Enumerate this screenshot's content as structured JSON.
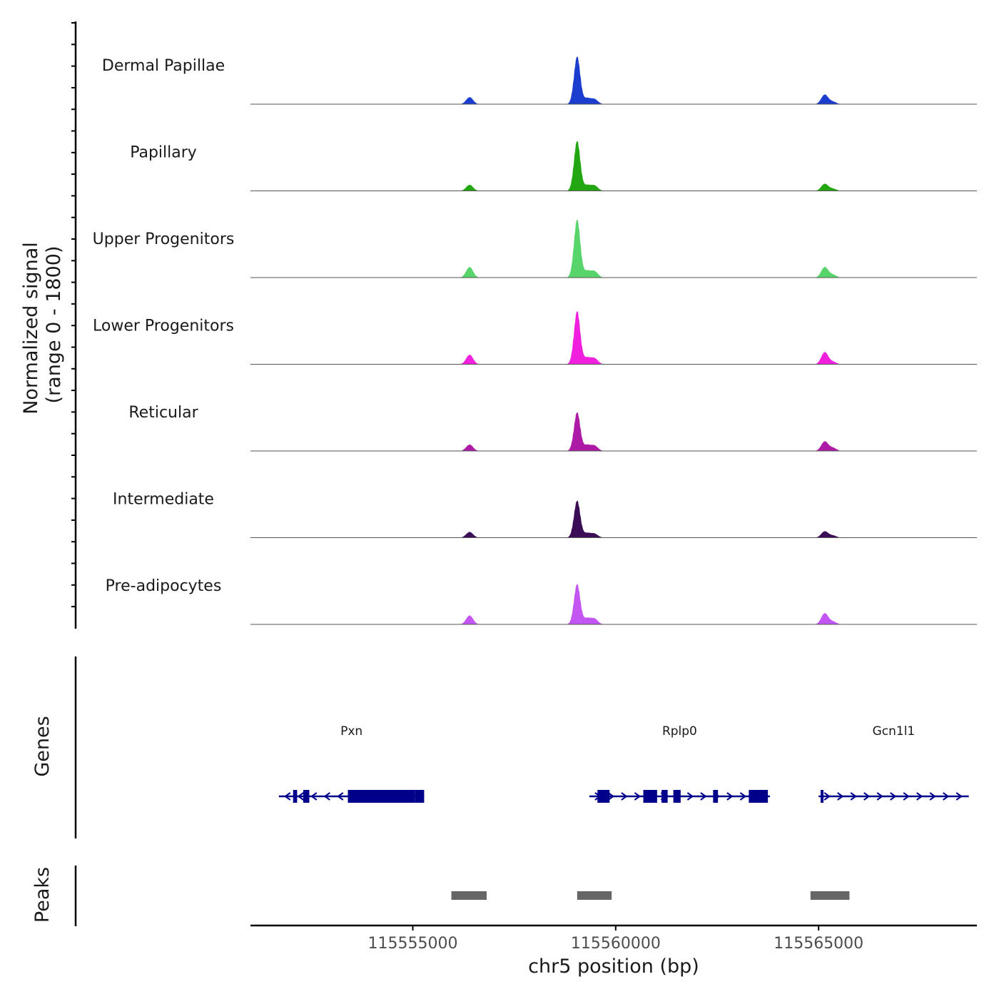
{
  "chart_data": {
    "type": "area",
    "title": "",
    "ylabel": "Normalized signal",
    "ylabel_range": "(range 0 - 1800)",
    "xlabel": "chr5 position (bp)",
    "yrange": [
      0,
      1800
    ],
    "xlim": [
      115551000,
      115568900
    ],
    "xticks": [
      115555000,
      115560000,
      115565000
    ],
    "xtick_labels": [
      "115555000",
      "115560000",
      "115565000"
    ],
    "tracks": [
      {
        "name": "Dermal Papillae",
        "color": "#1b3ecf",
        "peaks": [
          [
            115556400,
            220
          ],
          [
            115559050,
            1480
          ],
          [
            115559300,
            180
          ],
          [
            115559480,
            150
          ],
          [
            115565150,
            300
          ],
          [
            115565350,
            80
          ]
        ]
      },
      {
        "name": "Papillary",
        "color": "#22a612",
        "peaks": [
          [
            115556400,
            190
          ],
          [
            115559050,
            1550
          ],
          [
            115559300,
            170
          ],
          [
            115559480,
            160
          ],
          [
            115565150,
            220
          ],
          [
            115565350,
            70
          ]
        ]
      },
      {
        "name": "Upper Progenitors",
        "color": "#57d56a",
        "peaks": [
          [
            115556400,
            330
          ],
          [
            115559050,
            1800
          ],
          [
            115559300,
            200
          ],
          [
            115559480,
            190
          ],
          [
            115565150,
            330
          ],
          [
            115565350,
            90
          ]
        ]
      },
      {
        "name": "Lower Progenitors",
        "color": "#f020de",
        "peaks": [
          [
            115556400,
            300
          ],
          [
            115559050,
            1650
          ],
          [
            115559300,
            200
          ],
          [
            115559480,
            180
          ],
          [
            115565150,
            380
          ],
          [
            115565350,
            80
          ]
        ]
      },
      {
        "name": "Reticular",
        "color": "#ad1aa6",
        "peaks": [
          [
            115556400,
            200
          ],
          [
            115559050,
            1200
          ],
          [
            115559300,
            180
          ],
          [
            115559480,
            160
          ],
          [
            115565150,
            300
          ],
          [
            115565350,
            100
          ]
        ]
      },
      {
        "name": "Intermediate",
        "color": "#3a0d56",
        "peaks": [
          [
            115556400,
            180
          ],
          [
            115559050,
            1150
          ],
          [
            115559300,
            140
          ],
          [
            115559480,
            120
          ],
          [
            115565150,
            200
          ],
          [
            115565350,
            70
          ]
        ]
      },
      {
        "name": "Pre-adipocytes",
        "color": "#c355f2",
        "peaks": [
          [
            115556400,
            280
          ],
          [
            115559050,
            1250
          ],
          [
            115559300,
            190
          ],
          [
            115559480,
            170
          ],
          [
            115565150,
            350
          ],
          [
            115565350,
            90
          ]
        ]
      }
    ],
    "genes_label": "Genes",
    "genes": [
      {
        "name": "Pxn",
        "start": 115551700,
        "end": 115555280,
        "strand": "-",
        "exons": [
          [
            115552050,
            115552150
          ],
          [
            115552300,
            115552450
          ],
          [
            115553400,
            115555050
          ],
          [
            115555050,
            115555280
          ]
        ]
      },
      {
        "name": "Rplp0",
        "start": 115559350,
        "end": 115563800,
        "strand": "+",
        "exons": [
          [
            115559550,
            115559850
          ],
          [
            115560680,
            115561020
          ],
          [
            115561130,
            115561280
          ],
          [
            115561420,
            115561600
          ],
          [
            115562400,
            115562520
          ],
          [
            115563280,
            115563750
          ]
        ]
      },
      {
        "name": "Gcn1l1",
        "start": 115565000,
        "end": 115568700,
        "strand": "+",
        "exons": [
          [
            115565050,
            115565110
          ]
        ]
      }
    ],
    "peaks_label": "Peaks",
    "peak_regions": [
      [
        115555950,
        115556820
      ],
      [
        115559050,
        115559900
      ],
      [
        115564800,
        115565760
      ]
    ],
    "colors": {
      "gene": "#00008b",
      "peak": "#666666",
      "axis": "#000000",
      "baseline": "#555555"
    }
  }
}
